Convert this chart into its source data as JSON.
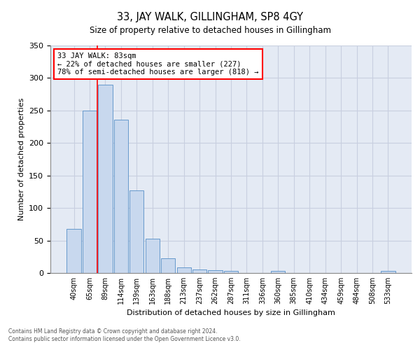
{
  "title": "33, JAY WALK, GILLINGHAM, SP8 4GY",
  "subtitle": "Size of property relative to detached houses in Gillingham",
  "xlabel": "Distribution of detached houses by size in Gillingham",
  "ylabel": "Number of detached properties",
  "bar_color": "#c8d8ee",
  "bar_edge_color": "#6699cc",
  "grid_color": "#c8cfe0",
  "background_color": "#e4eaf4",
  "categories": [
    "40sqm",
    "65sqm",
    "89sqm",
    "114sqm",
    "139sqm",
    "163sqm",
    "188sqm",
    "213sqm",
    "237sqm",
    "262sqm",
    "287sqm",
    "311sqm",
    "336sqm",
    "360sqm",
    "385sqm",
    "410sqm",
    "434sqm",
    "459sqm",
    "484sqm",
    "508sqm",
    "533sqm"
  ],
  "values": [
    68,
    250,
    290,
    236,
    127,
    53,
    23,
    9,
    5,
    4,
    3,
    0,
    0,
    3,
    0,
    0,
    0,
    0,
    0,
    0,
    3
  ],
  "red_line_x": 1.5,
  "annotation_text": "33 JAY WALK: 83sqm\n← 22% of detached houses are smaller (227)\n78% of semi-detached houses are larger (818) →",
  "annotation_box_color": "white",
  "annotation_box_edge_color": "red",
  "red_line_color": "red",
  "ylim": [
    0,
    350
  ],
  "yticks": [
    0,
    50,
    100,
    150,
    200,
    250,
    300,
    350
  ],
  "footer_line1": "Contains HM Land Registry data © Crown copyright and database right 2024.",
  "footer_line2": "Contains public sector information licensed under the Open Government Licence v3.0."
}
